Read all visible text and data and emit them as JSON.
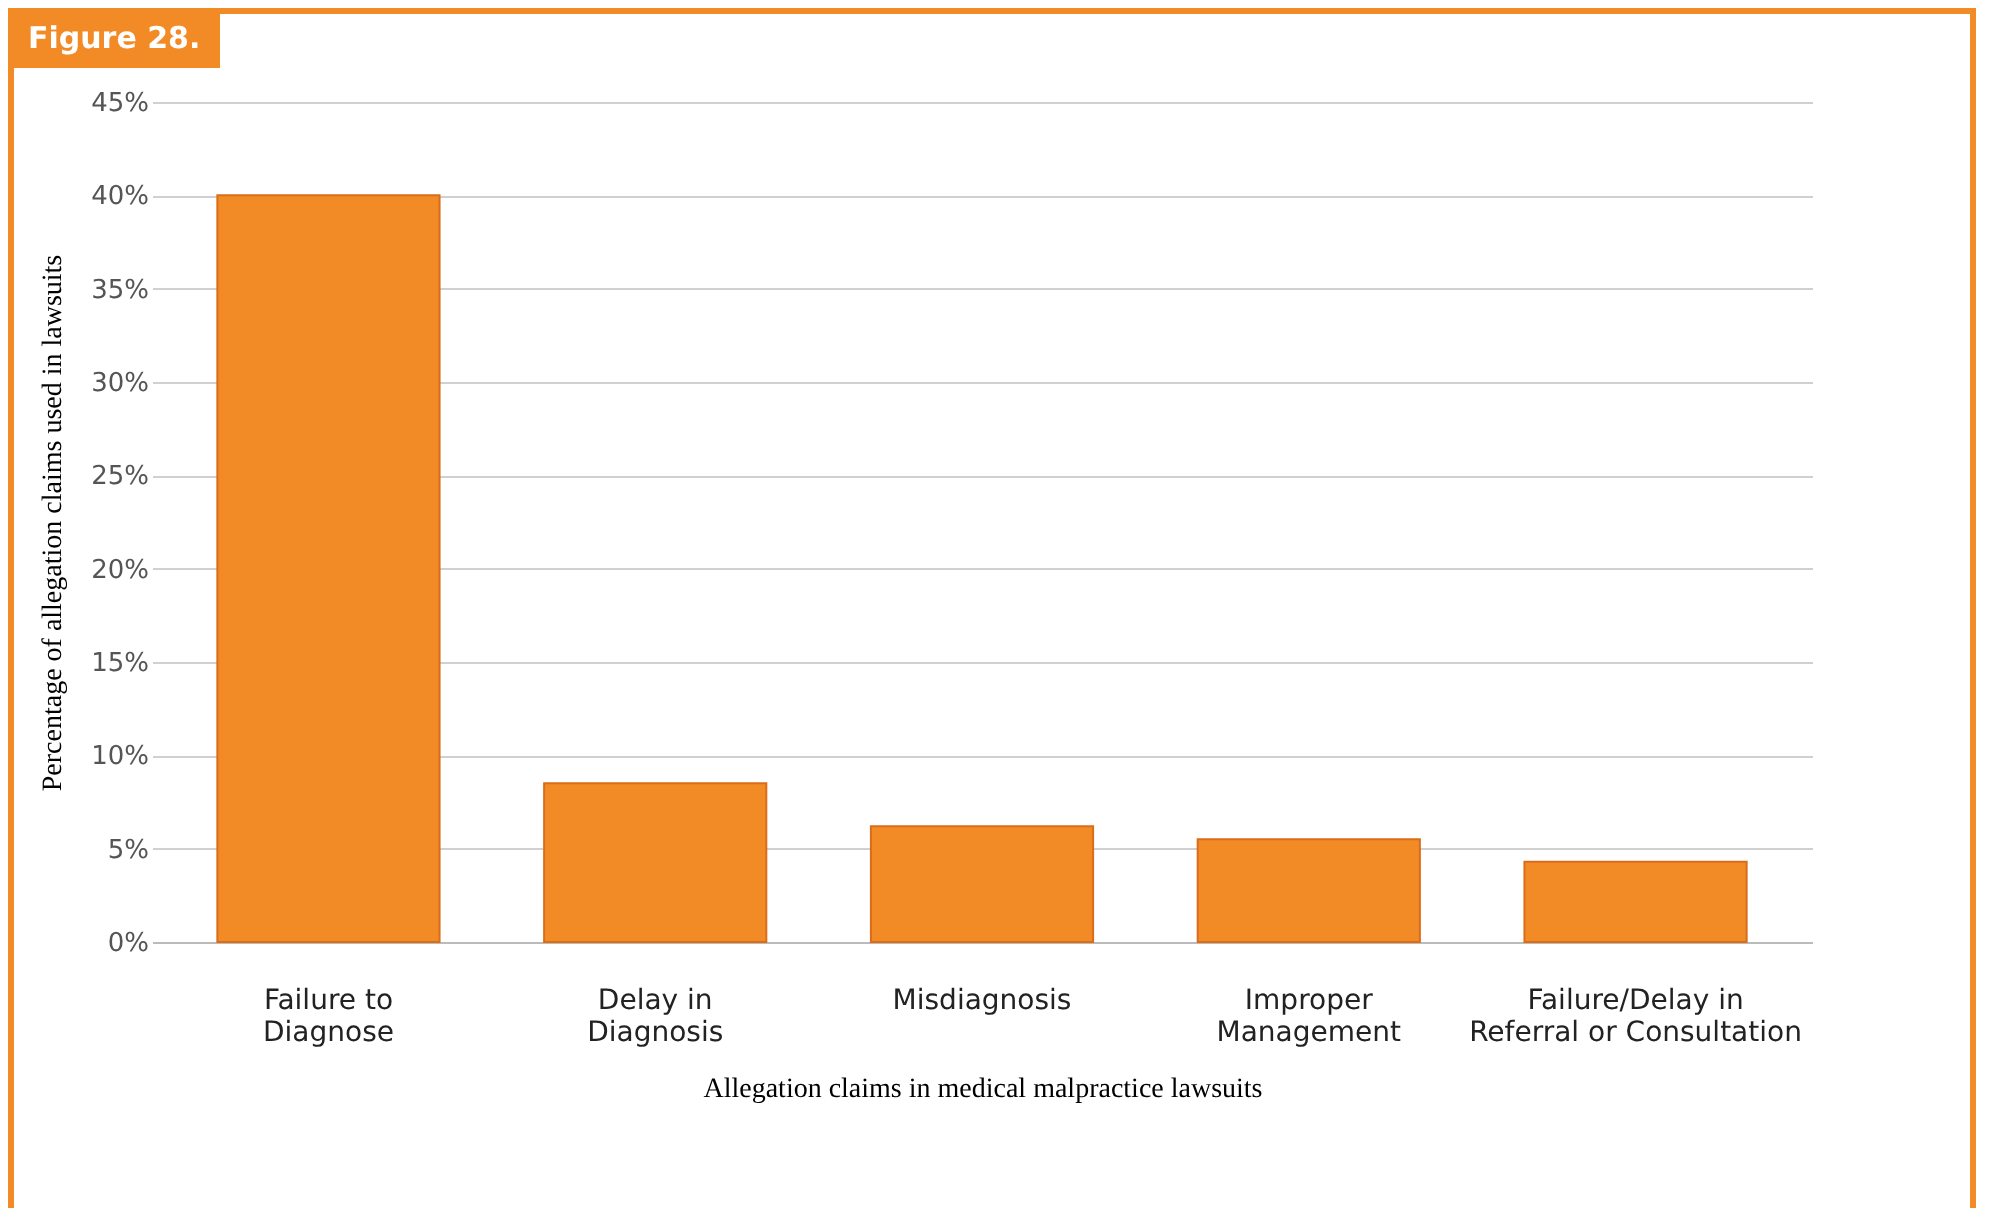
{
  "chart_data": {
    "type": "bar",
    "title": "Figure 28.",
    "xlabel": "Allegation claims in medical malpractice lawsuits",
    "ylabel": "Percentage of allegation claims used in lawsuits",
    "categories": [
      "Failure to\nDiagnose",
      "Delay in\nDiagnosis",
      "Misdiagnosis",
      "Improper\nManagement",
      "Failure/Delay in\nReferral or Consultation"
    ],
    "values": [
      40,
      8.5,
      6.2,
      5.5,
      4.3
    ],
    "color": "#f28a25",
    "ylim": [
      0,
      45
    ],
    "yticks": [
      {
        "value": 0,
        "label": "0%"
      },
      {
        "value": 5,
        "label": "5%"
      },
      {
        "value": 10,
        "label": "10%"
      },
      {
        "value": 15,
        "label": "15%"
      },
      {
        "value": 20,
        "label": "20%"
      },
      {
        "value": 25,
        "label": "25%"
      },
      {
        "value": 30,
        "label": "30%"
      },
      {
        "value": 35,
        "label": "35%"
      },
      {
        "value": 40,
        "label": "40%"
      },
      {
        "value": 45,
        "label": "45%"
      }
    ],
    "grid": "y"
  }
}
